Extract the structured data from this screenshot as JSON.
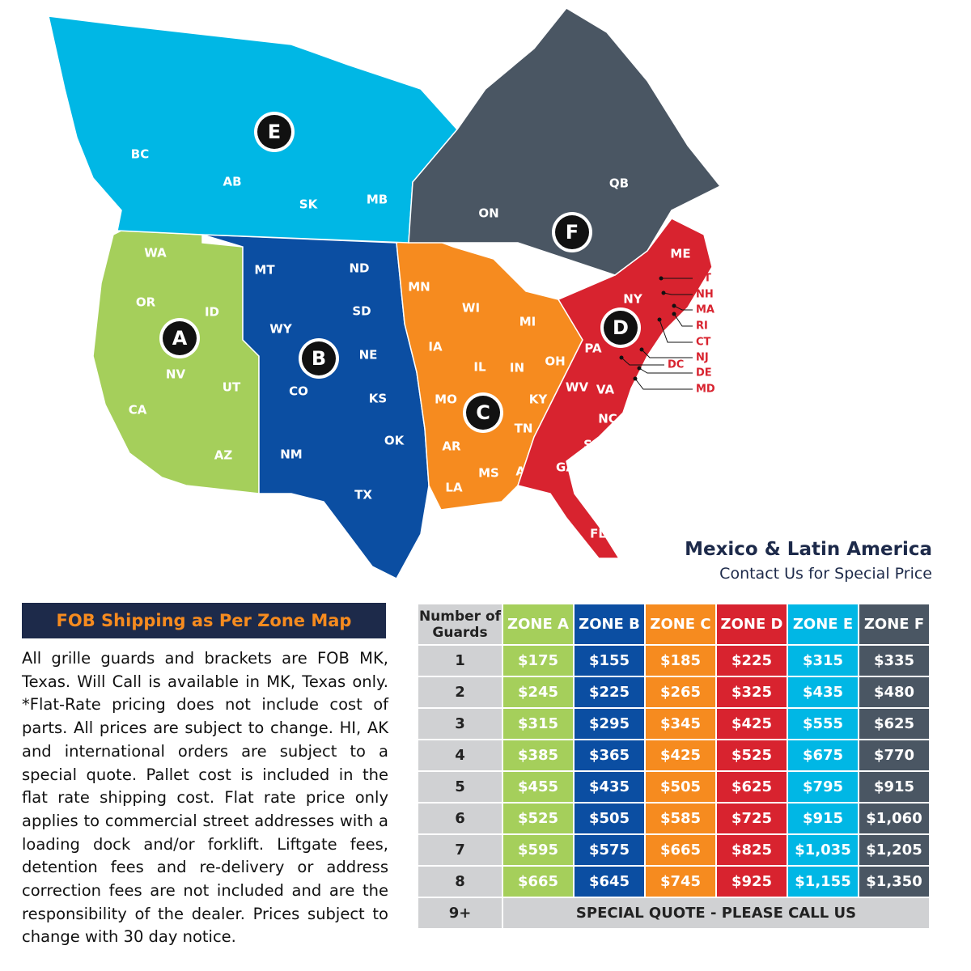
{
  "map": {
    "zones": [
      {
        "letter": "A",
        "color": "#a5cf5b",
        "states": [
          "WA",
          "OR",
          "ID",
          "NV",
          "UT",
          "CA",
          "AZ"
        ]
      },
      {
        "letter": "B",
        "color": "#0b4ea2",
        "states": [
          "MT",
          "ND",
          "SD",
          "WY",
          "NE",
          "CO",
          "KS",
          "NM",
          "OK",
          "TX"
        ]
      },
      {
        "letter": "C",
        "color": "#f68b1f",
        "states": [
          "MN",
          "WI",
          "MI",
          "IA",
          "IL",
          "IN",
          "OH",
          "MO",
          "KY",
          "TN",
          "AR",
          "MS",
          "AL",
          "LA"
        ]
      },
      {
        "letter": "D",
        "color": "#d8232f",
        "states": [
          "ME",
          "NY",
          "PA",
          "WV",
          "VA",
          "NC",
          "SC",
          "GA",
          "FL"
        ]
      },
      {
        "letter": "E",
        "color": "#00b7e5",
        "states": [
          "BC",
          "AB",
          "SK",
          "MB"
        ]
      },
      {
        "letter": "F",
        "color": "#4a5663",
        "states": [
          "ON",
          "QB"
        ]
      }
    ],
    "callouts": [
      "VT",
      "NH",
      "MA",
      "RI",
      "CT",
      "NJ",
      "DC",
      "DE",
      "MD"
    ],
    "note_title": "Mexico & Latin America",
    "note_subtitle": "Contact Us for Special Price"
  },
  "panel": {
    "title": "FOB Shipping as Per Zone Map",
    "body": "All grille guards and brackets are FOB MK, Texas. Will Call is available in MK, Texas only. *Flat-Rate pricing does not include cost of parts. All prices are subject to change. HI, AK and international orders are subject to a special quote. Pallet cost is included in the flat rate shipping cost. Flat rate price only applies to commercial street addresses with a loading dock and/or forklift. Liftgate fees, detention fees and re-delivery or address correction fees are not included and are the responsibility of the dealer. Prices subject to change with 30 day notice."
  },
  "table": {
    "header": [
      "Number of Guards",
      "ZONE A",
      "ZONE B",
      "ZONE C",
      "ZONE D",
      "ZONE E",
      "ZONE F"
    ],
    "rows": [
      [
        "1",
        "$175",
        "$155",
        "$185",
        "$225",
        "$315",
        "$335"
      ],
      [
        "2",
        "$245",
        "$225",
        "$265",
        "$325",
        "$435",
        "$480"
      ],
      [
        "3",
        "$315",
        "$295",
        "$345",
        "$425",
        "$555",
        "$625"
      ],
      [
        "4",
        "$385",
        "$365",
        "$425",
        "$525",
        "$675",
        "$770"
      ],
      [
        "5",
        "$455",
        "$435",
        "$505",
        "$625",
        "$795",
        "$915"
      ],
      [
        "6",
        "$525",
        "$505",
        "$585",
        "$725",
        "$915",
        "$1,060"
      ],
      [
        "7",
        "$595",
        "$575",
        "$665",
        "$825",
        "$1,035",
        "$1,205"
      ],
      [
        "8",
        "$665",
        "$645",
        "$745",
        "$925",
        "$1,155",
        "$1,350"
      ]
    ],
    "last_row": [
      "9+",
      "SPECIAL QUOTE - PLEASE CALL US"
    ]
  }
}
